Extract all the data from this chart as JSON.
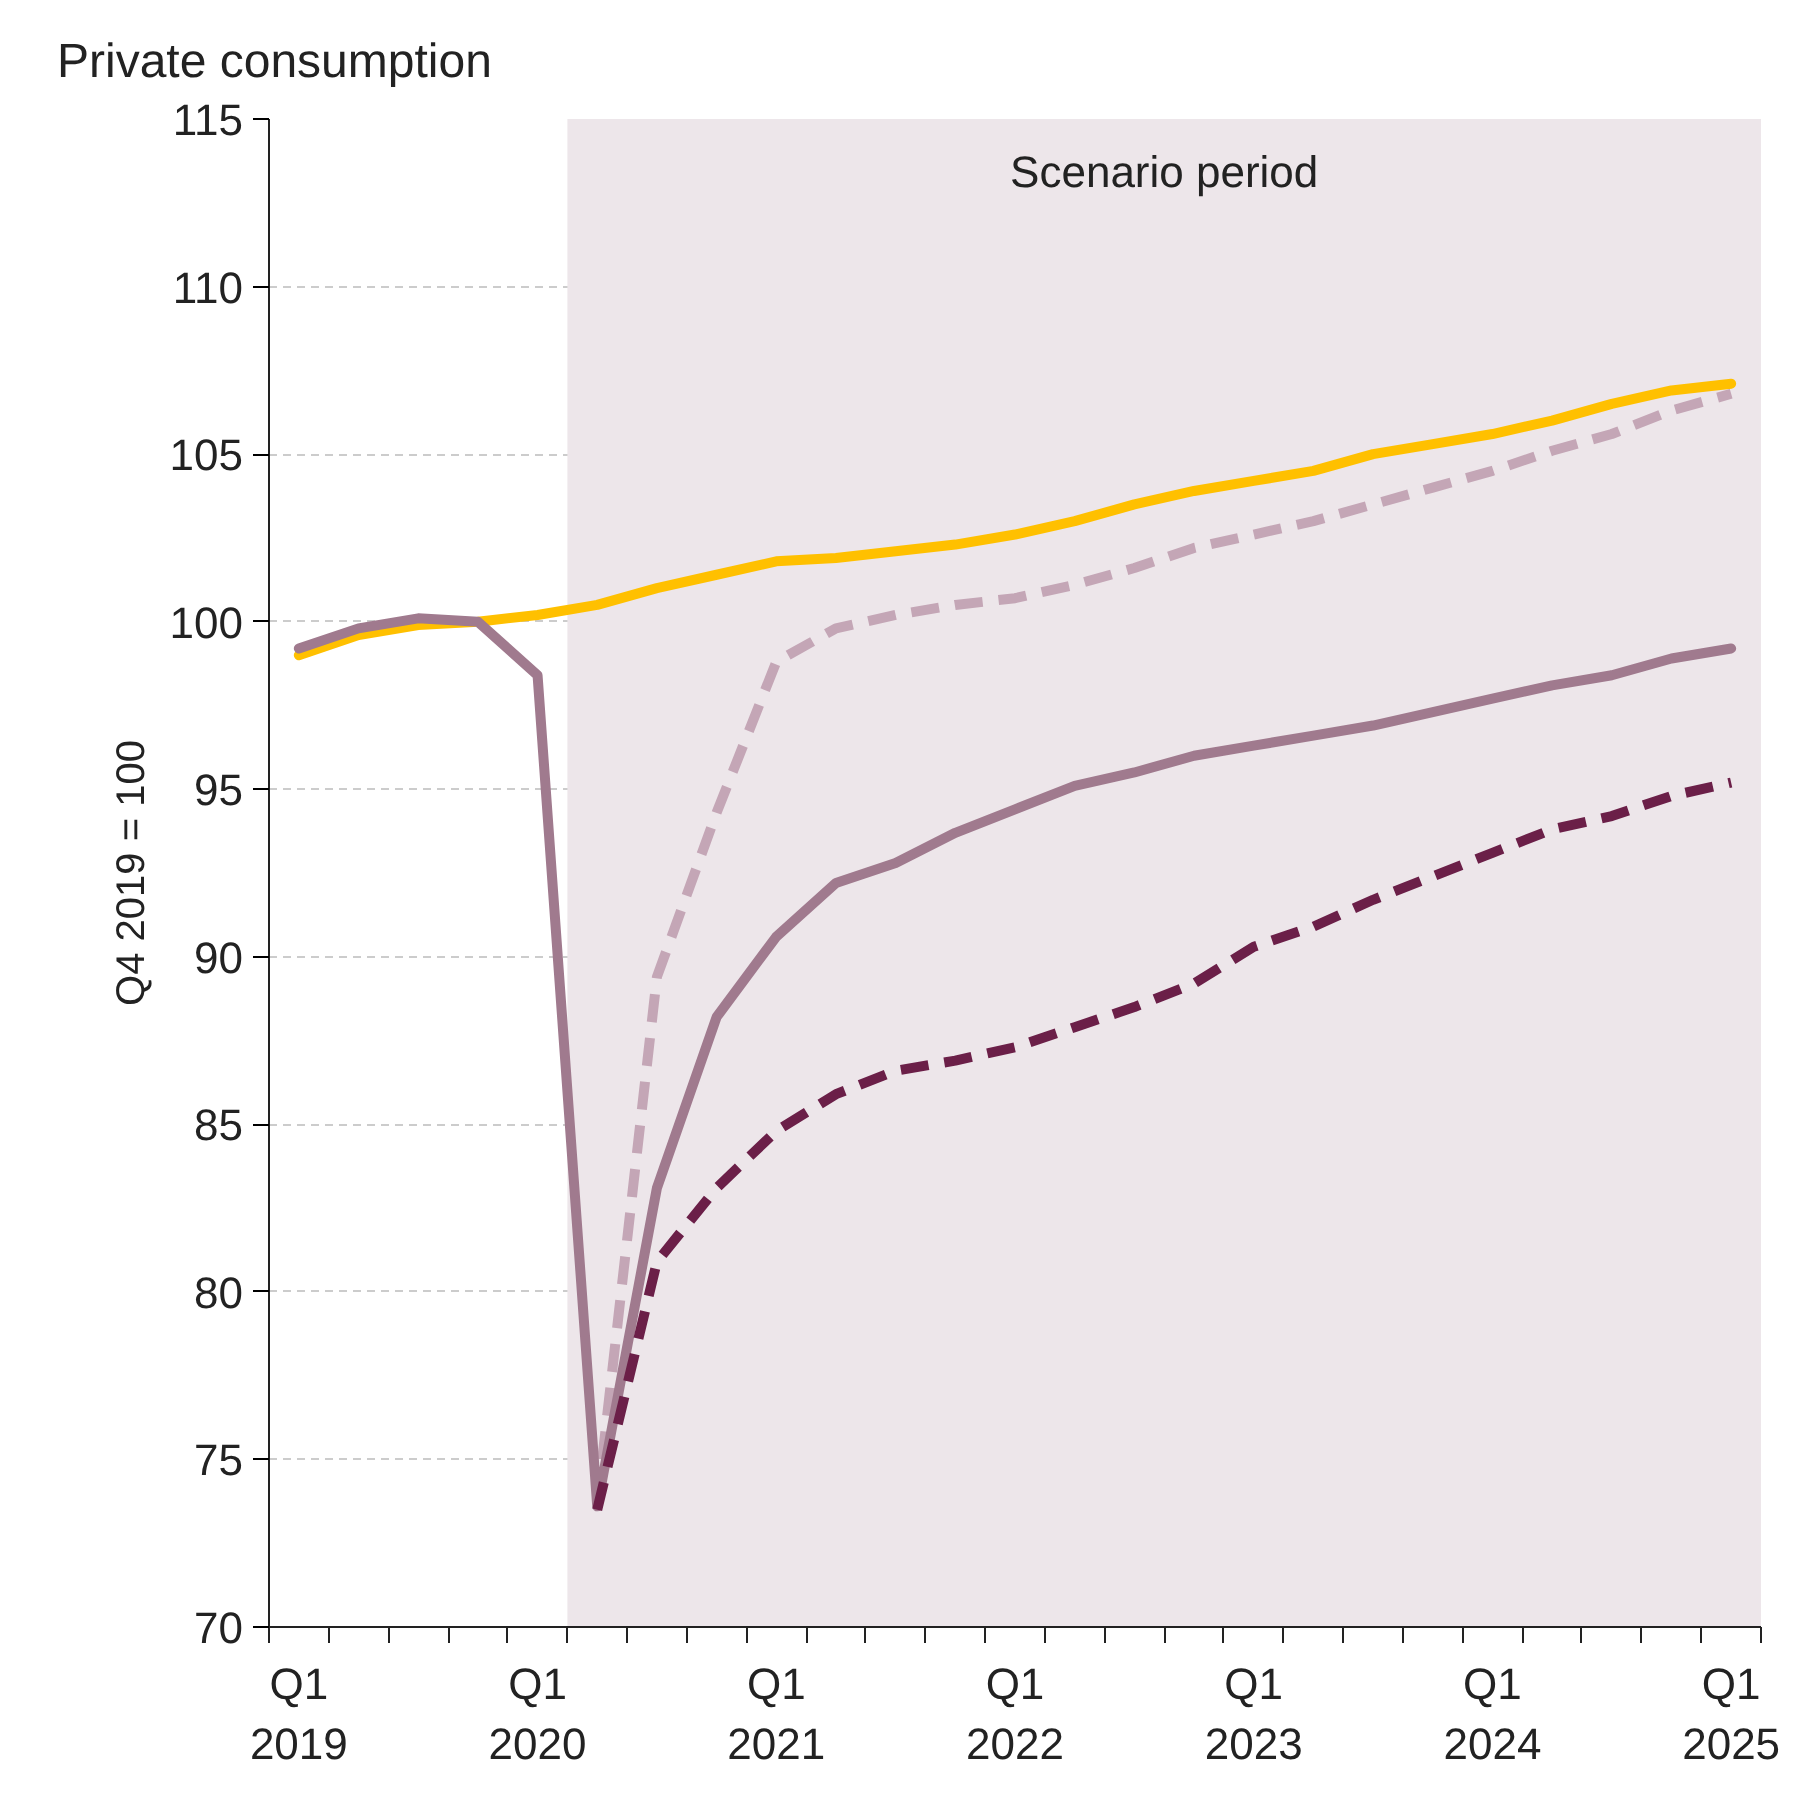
{
  "chart_data": {
    "type": "line",
    "title": "Private consumption",
    "ylabel": "Q4 2019 = 100",
    "categories": [
      "Q1\n2019",
      null,
      null,
      null,
      "Q1\n2020",
      null,
      null,
      null,
      "Q1\n2021",
      null,
      null,
      null,
      "Q1\n2022",
      null,
      null,
      null,
      "Q1\n2023",
      null,
      null,
      null,
      "Q1\n2024",
      null,
      null,
      null,
      "Q1\n2025"
    ],
    "ylim": [
      70,
      115
    ],
    "yticks": [
      70,
      75,
      80,
      85,
      90,
      95,
      100,
      105,
      110,
      115
    ],
    "grid": "y",
    "annotations": [
      "Scenario period"
    ],
    "series": [
      {
        "color": "#ffc000",
        "line_style": "solid",
        "values": [
          99.0,
          99.6,
          99.9,
          100.0,
          100.2,
          100.5,
          101.0,
          101.4,
          101.8,
          101.9,
          102.1,
          102.3,
          102.6,
          103.0,
          103.5,
          103.9,
          104.2,
          104.5,
          105.0,
          105.3,
          105.6,
          106.0,
          106.5,
          106.9,
          107.1
        ]
      },
      {
        "color": "#c4a6b6",
        "line_style": "dashed",
        "values": [
          null,
          null,
          null,
          null,
          null,
          73.7,
          89.4,
          94.3,
          98.8,
          99.8,
          100.2,
          100.5,
          100.7,
          101.1,
          101.6,
          102.2,
          102.6,
          103.0,
          103.5,
          104.0,
          104.5,
          105.1,
          105.6,
          106.3,
          106.8
        ]
      },
      {
        "color": "#a07a8e",
        "line_style": "solid",
        "values": [
          99.2,
          99.8,
          100.1,
          100.0,
          98.4,
          73.6,
          83.1,
          88.2,
          90.6,
          92.2,
          92.8,
          93.7,
          94.4,
          95.1,
          95.5,
          96.0,
          96.3,
          96.6,
          96.9,
          97.3,
          97.7,
          98.1,
          98.4,
          98.9,
          99.2
        ]
      },
      {
        "color": "#6b1f48",
        "line_style": "dashed",
        "values": [
          null,
          null,
          null,
          null,
          null,
          73.5,
          80.9,
          83.1,
          84.8,
          85.9,
          86.6,
          86.9,
          87.3,
          87.9,
          88.5,
          89.2,
          90.3,
          90.9,
          91.7,
          92.4,
          93.1,
          93.8,
          94.2,
          94.8,
          95.2
        ]
      }
    ]
  }
}
